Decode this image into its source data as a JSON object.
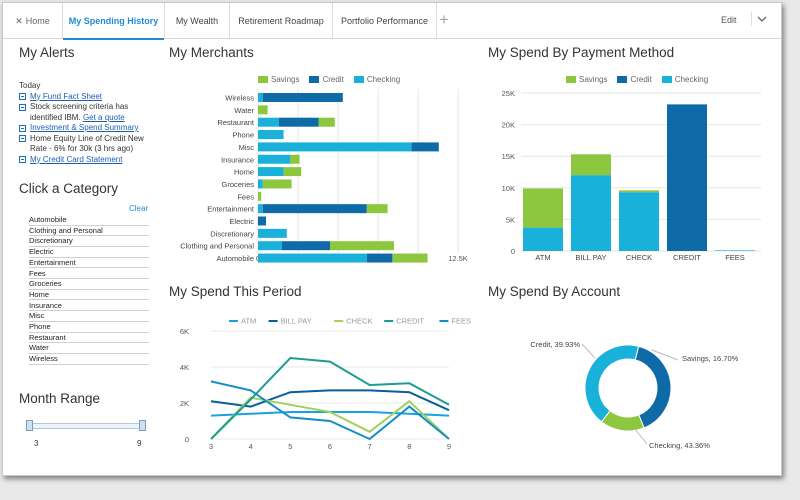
{
  "colors": {
    "savings": "#8dc63f",
    "credit": "#0f6aa8",
    "checking": "#19b1d9",
    "atm": "#1aa2e0",
    "billpay": "#0a5e9a",
    "check": "#a3cf5c",
    "credit_line": "#138fc4",
    "fees": "#27a37a",
    "line_teal": "#1a9e8f"
  },
  "tabs": [
    "Home",
    "My Spending History",
    "My Wealth",
    "Retirement Roadmap",
    "Portfolio Performance"
  ],
  "toolbar": {
    "edit": "Edit"
  },
  "alerts": {
    "title": "My Alerts",
    "today": "Today",
    "items": [
      {
        "text": "My Fund Fact Sheet",
        "link": true
      },
      {
        "text": "Stock screening criteria has identified IBM.",
        "extra": "Get a quote",
        "link": false
      },
      {
        "text": "Investment & Spend Summary",
        "link": true
      },
      {
        "text": "Home Equity Line of Credit New Rate - 6% for 30k (3 hrs ago)",
        "link": false
      },
      {
        "text": "My Credit Card Statement",
        "link": true
      }
    ]
  },
  "categories": {
    "title": "Click a Category",
    "clear": "Clear",
    "items": [
      "Automobile",
      "Clothing and Personal",
      "Discretionary",
      "Electric",
      "Entertainment",
      "Fees",
      "Groceries",
      "Home",
      "Insurance",
      "Misc",
      "Phone",
      "Restaurant",
      "Water",
      "Wireless"
    ]
  },
  "month_range": {
    "title": "Month Range",
    "min": "3",
    "max": "9"
  },
  "chart_data": [
    {
      "type": "bar",
      "orientation": "horizontal",
      "stacked": true,
      "title": "My Merchants",
      "categories": [
        "Wireless",
        "Water",
        "Restaurant",
        "Phone",
        "Misc",
        "Insurance",
        "Home",
        "Groceries",
        "Fees",
        "Entertainment",
        "Electric",
        "Discretionary",
        "Clothing and Personal",
        "Automobile"
      ],
      "series": [
        {
          "name": "Savings",
          "values": [
            0,
            600,
            1000,
            0,
            0,
            600,
            1100,
            1800,
            200,
            1300,
            0,
            0,
            4000,
            2200
          ]
        },
        {
          "name": "Credit",
          "values": [
            5000,
            0,
            2500,
            0,
            1700,
            0,
            0,
            0,
            0,
            6500,
            500,
            0,
            3000,
            1600
          ]
        },
        {
          "name": "Checking",
          "values": [
            300,
            0,
            1300,
            1600,
            9600,
            2000,
            1600,
            300,
            0,
            300,
            0,
            1800,
            1500,
            6800
          ]
        }
      ],
      "xticks": [
        "0",
        "2.5K",
        "5K",
        "7.5K",
        "10K",
        "12.5K"
      ],
      "xlim": [
        0,
        12500
      ]
    },
    {
      "type": "bar",
      "stacked": true,
      "title": "My Spend By Payment Method",
      "categories": [
        "ATM",
        "BILL PAY",
        "CHECK",
        "CREDIT",
        "FEES"
      ],
      "series": [
        {
          "name": "Savings",
          "values": [
            6200,
            3300,
            300,
            0,
            0
          ]
        },
        {
          "name": "Credit",
          "values": [
            0,
            0,
            0,
            23200,
            0
          ]
        },
        {
          "name": "Checking",
          "values": [
            3700,
            12000,
            9300,
            0,
            100
          ]
        }
      ],
      "yticks": [
        "0",
        "5K",
        "10K",
        "15K",
        "20K",
        "25K"
      ],
      "ylim": [
        0,
        25000
      ]
    },
    {
      "type": "line",
      "title": "My Spend This Period",
      "x": [
        3,
        4,
        5,
        6,
        7,
        8,
        9
      ],
      "series": [
        {
          "name": "ATM",
          "values": [
            1300,
            1400,
            1500,
            1500,
            1500,
            1400,
            1300
          ]
        },
        {
          "name": "BILL PAY",
          "values": [
            2100,
            1800,
            2600,
            2700,
            2700,
            2600,
            1600
          ]
        },
        {
          "name": "CHECK",
          "values": [
            0,
            2300,
            1900,
            1500,
            400,
            2100,
            0
          ]
        },
        {
          "name": "CREDIT",
          "values": [
            0,
            2200,
            4500,
            4300,
            3000,
            3100,
            1900
          ]
        },
        {
          "name": "FEES",
          "values": [
            3200,
            2700,
            1200,
            1000,
            0,
            1800,
            0
          ]
        }
      ],
      "yticks": [
        "0",
        "2K",
        "4K",
        "6K"
      ],
      "ylim": [
        0,
        6000
      ]
    },
    {
      "type": "pie",
      "donut": true,
      "title": "My Spend By Account",
      "labels": [
        "Credit",
        "Savings",
        "Checking"
      ],
      "values": [
        39.93,
        16.7,
        43.36
      ],
      "data_labels": [
        "Credit, 39.93%",
        "Savings, 16.70%",
        "Checking, 43.36%"
      ]
    }
  ]
}
